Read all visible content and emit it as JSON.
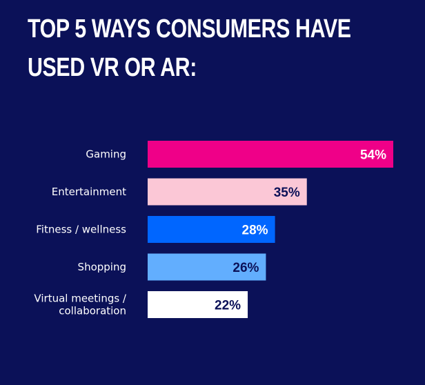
{
  "title_lines": [
    "TOP 5 WAYS CONSUMERS HAVE",
    "USED VR OR AR:"
  ],
  "chart_data": {
    "type": "bar",
    "orientation": "horizontal",
    "title": "TOP 5 WAYS CONSUMERS HAVE USED VR OR AR:",
    "categories": [
      [
        "Gaming"
      ],
      [
        "Entertainment"
      ],
      [
        "Fitness / wellness"
      ],
      [
        "Shopping"
      ],
      [
        "Virtual meetings /",
        "collaboration"
      ]
    ],
    "values": [
      54,
      35,
      28,
      26,
      22
    ],
    "value_labels": [
      "54%",
      "35%",
      "28%",
      "26%",
      "22%"
    ],
    "bar_colors": [
      "#ef0088",
      "#fbc7d6",
      "#0066ff",
      "#62aefe",
      "#ffffff"
    ],
    "label_colors": [
      "#ffffff",
      "#0b1158",
      "#ffffff",
      "#0b1158",
      "#0b1158"
    ],
    "xlim": [
      0,
      54
    ],
    "grid": false,
    "legend": "none"
  }
}
